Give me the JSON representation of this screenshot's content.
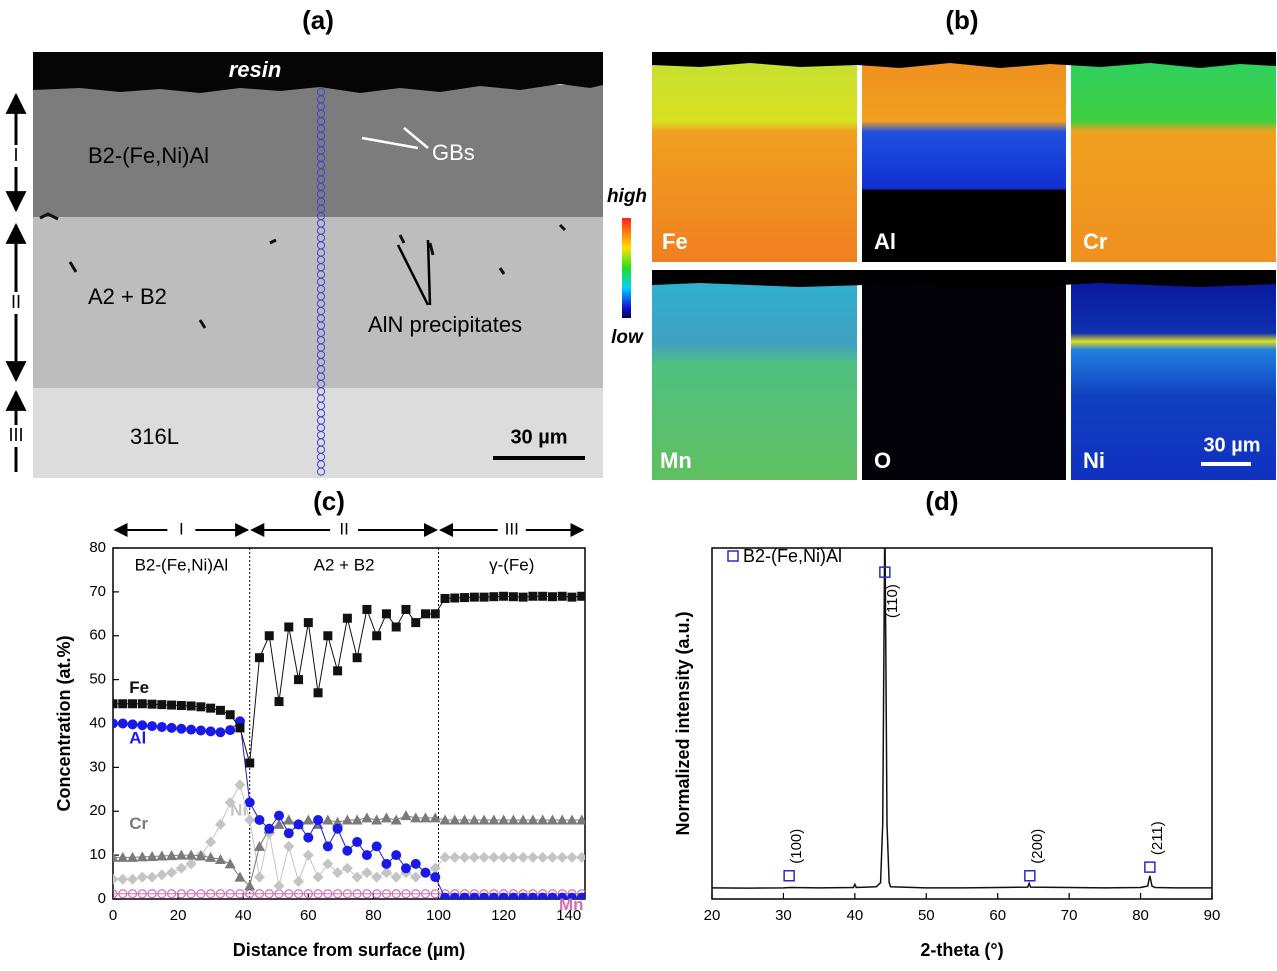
{
  "panel_a": {
    "title": "(a)",
    "resin": "resin",
    "layer1": "B2-(Fe,Ni)Al",
    "gbs": "GBs",
    "layer2": "A2 + B2",
    "precip": "AlN precipitates",
    "layer3": "316L",
    "scale": "30 µm",
    "zones": [
      "I",
      "II",
      "III"
    ]
  },
  "panel_b": {
    "title": "(b)",
    "maps": [
      "Fe",
      "Al",
      "Cr",
      "Mn",
      "O",
      "Ni"
    ],
    "high": "high",
    "low": "low",
    "scale": "30 µm"
  },
  "chart_data": [
    {
      "type": "line",
      "title": "(c)",
      "xlabel": "Distance from surface (µm)",
      "ylabel": "Concentration (at.%)",
      "xlim": [
        0,
        145
      ],
      "ylim": [
        0,
        80
      ],
      "xticks": [
        0,
        20,
        40,
        60,
        80,
        100,
        120,
        140
      ],
      "yticks": [
        0,
        10,
        20,
        30,
        40,
        50,
        60,
        70,
        80
      ],
      "regions": [
        {
          "label": "I",
          "zone": "B2-(Fe,Ni)Al",
          "x": [
            0,
            42
          ]
        },
        {
          "label": "II",
          "zone": "A2 + B2",
          "x": [
            42,
            100
          ]
        },
        {
          "label": "III",
          "zone": "γ-(Fe)",
          "x": [
            100,
            145
          ]
        }
      ],
      "x": [
        0,
        3,
        6,
        9,
        12,
        15,
        18,
        21,
        24,
        27,
        30,
        33,
        36,
        39,
        42,
        45,
        48,
        51,
        54,
        57,
        60,
        63,
        66,
        69,
        72,
        75,
        78,
        81,
        84,
        87,
        90,
        93,
        96,
        99,
        102,
        105,
        108,
        111,
        114,
        117,
        120,
        123,
        126,
        129,
        132,
        135,
        138,
        141,
        144
      ],
      "series": [
        {
          "name": "Fe",
          "color": "#111111",
          "marker": "square",
          "values": [
            44.5,
            44.5,
            44.5,
            44.5,
            44.4,
            44.3,
            44.2,
            44.1,
            44,
            43.8,
            43.5,
            43,
            42,
            39,
            31,
            55,
            60,
            45,
            62,
            50,
            63,
            47,
            60,
            52,
            64,
            55,
            66,
            60,
            65,
            62,
            66,
            63,
            65,
            65,
            68.5,
            68.6,
            68.7,
            68.8,
            68.8,
            68.9,
            69,
            68.9,
            68.8,
            69,
            69,
            68.9,
            69,
            68.8,
            69
          ]
        },
        {
          "name": "Al",
          "color": "#1a1ae6",
          "marker": "circle",
          "values": [
            40,
            40,
            39.8,
            39.6,
            39.4,
            39.2,
            39,
            38.8,
            38.6,
            38.4,
            38.2,
            38,
            38.5,
            40.5,
            22,
            18,
            16,
            19,
            15,
            17,
            14,
            18,
            12,
            16,
            11,
            13,
            10,
            12,
            8,
            10,
            7,
            8,
            6,
            5,
            0.3,
            0.3,
            0.3,
            0.3,
            0.3,
            0.3,
            0.3,
            0.3,
            0.3,
            0.3,
            0.3,
            0.3,
            0.3,
            0.3,
            0.3
          ]
        },
        {
          "name": "Cr",
          "color": "#7a7a7a",
          "marker": "triangle",
          "values": [
            9.5,
            9.5,
            9.5,
            9.6,
            9.7,
            9.8,
            9.9,
            10,
            10,
            9.8,
            9.5,
            9,
            8,
            5,
            3,
            12,
            16,
            17,
            18,
            17,
            18,
            17,
            18,
            17.5,
            18,
            18,
            18.5,
            18,
            18.5,
            18,
            19,
            18.5,
            18.5,
            18.5,
            18,
            18,
            18,
            18,
            18,
            18,
            18,
            18,
            18,
            18,
            18,
            18,
            18,
            18,
            18
          ]
        },
        {
          "name": "Ni",
          "color": "#c4c4c4",
          "marker": "diamond",
          "values": [
            4.5,
            4.5,
            4.5,
            5,
            5,
            5.5,
            6,
            7,
            8,
            10,
            13,
            17,
            22,
            26,
            18,
            5,
            15,
            3,
            12,
            4,
            10,
            5,
            8,
            6,
            7,
            5,
            6,
            5,
            6,
            5,
            6,
            5,
            6,
            7,
            9.5,
            9.5,
            9.5,
            9.5,
            9.5,
            9.5,
            9.5,
            9.5,
            9.5,
            9.5,
            9.5,
            9.5,
            9.5,
            9.5,
            9.5
          ]
        },
        {
          "name": "Mn",
          "color": "#d070b0",
          "marker": "ring",
          "values": [
            1.2,
            1.2,
            1.2,
            1.2,
            1.2,
            1.2,
            1.2,
            1.2,
            1.2,
            1.2,
            1.2,
            1.2,
            1.2,
            1.2,
            1.2,
            1.2,
            1.2,
            1.2,
            1.2,
            1.2,
            1.2,
            1.2,
            1.2,
            1.2,
            1.2,
            1.2,
            1.2,
            1.2,
            1.2,
            1.2,
            1.2,
            1.2,
            1.2,
            1.2,
            1.2,
            1.2,
            1.2,
            1.2,
            1.2,
            1.2,
            1.2,
            1.2,
            1.2,
            1.2,
            1.2,
            1.2,
            1.2,
            1.2,
            1.2
          ]
        }
      ]
    },
    {
      "type": "xrd",
      "title": "(d)",
      "xlabel": "2-theta (°)",
      "ylabel": "Normalized intensity (a.u.)",
      "xlim": [
        20,
        90
      ],
      "ylim": [
        0,
        100
      ],
      "xticks": [
        20,
        30,
        40,
        50,
        60,
        70,
        80,
        90
      ],
      "x": [
        20,
        25,
        30,
        31,
        35,
        39.8,
        40,
        40.2,
        43,
        43.6,
        43.9,
        44.2,
        44.5,
        44.8,
        45,
        50,
        55,
        60,
        64.2,
        64.4,
        64.6,
        70,
        75,
        80,
        81,
        81.3,
        81.6,
        82,
        85,
        90
      ],
      "values": [
        1.5,
        1.4,
        1.5,
        1.6,
        1.5,
        1.6,
        2.5,
        1.6,
        1.8,
        3,
        20,
        110,
        20,
        3,
        1.8,
        1.5,
        1.5,
        1.6,
        1.7,
        2.8,
        1.7,
        1.6,
        1.5,
        1.6,
        2,
        5,
        2,
        1.6,
        1.5,
        1.5
      ],
      "color": "#111111",
      "phase": {
        "name": "B2-(Fe,Ni)Al",
        "color": "#2a2acc",
        "x": [
          30.8,
          44.2,
          64.5,
          81.3
        ],
        "values": [
          5,
          93,
          5,
          7.5
        ],
        "labels": [
          "(100)",
          "(110)",
          "(200)",
          "(211)"
        ]
      }
    }
  ]
}
